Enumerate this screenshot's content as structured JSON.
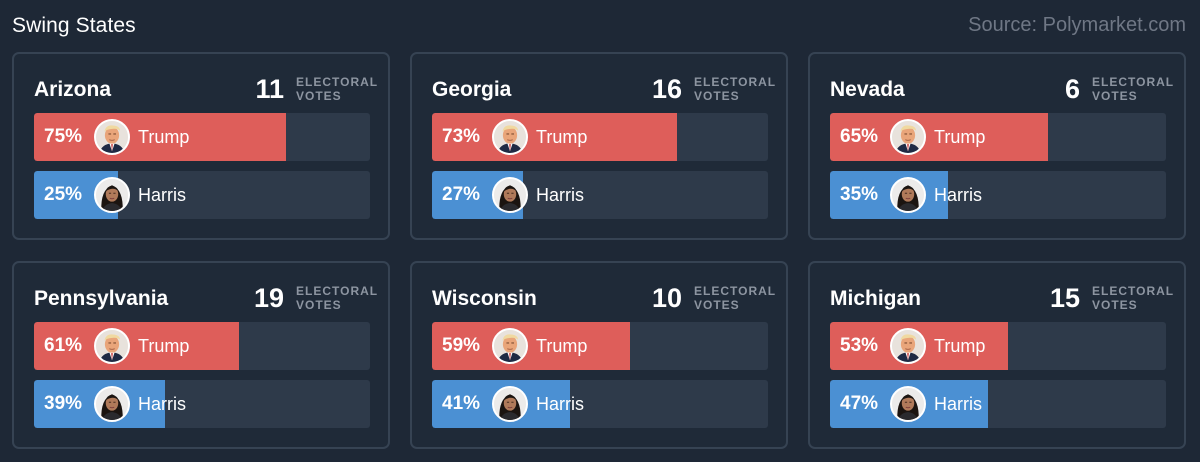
{
  "header": {
    "title": "Swing States",
    "source": "Source: Polymarket.com"
  },
  "electoral_label_line1": "ELECTORAL",
  "electoral_label_line2": "VOTES",
  "colors": {
    "trump": "#de5e5a",
    "harris": "#4b90d3",
    "track": "#2e3a4a",
    "background": "#1e2836"
  },
  "chart_data": {
    "type": "bar",
    "title": "Swing States",
    "unit": "%",
    "states": [
      {
        "name": "Arizona",
        "electoral_votes": "11",
        "trump": 75,
        "harris": 25,
        "trump_label": "75%",
        "harris_label": "25%"
      },
      {
        "name": "Georgia",
        "electoral_votes": "16",
        "trump": 73,
        "harris": 27,
        "trump_label": "73%",
        "harris_label": "27%"
      },
      {
        "name": "Nevada",
        "electoral_votes": "6",
        "trump": 65,
        "harris": 35,
        "trump_label": "65%",
        "harris_label": "35%"
      },
      {
        "name": "Pennsylvania",
        "electoral_votes": "19",
        "trump": 61,
        "harris": 39,
        "trump_label": "61%",
        "harris_label": "39%"
      },
      {
        "name": "Wisconsin",
        "electoral_votes": "10",
        "trump": 59,
        "harris": 41,
        "trump_label": "59%",
        "harris_label": "41%"
      },
      {
        "name": "Michigan",
        "electoral_votes": "15",
        "trump": 53,
        "harris": 47,
        "trump_label": "53%",
        "harris_label": "47%"
      }
    ],
    "series": [
      {
        "name": "Trump",
        "key": "trump",
        "avatar": "trump-portrait-icon"
      },
      {
        "name": "Harris",
        "key": "harris",
        "avatar": "harris-portrait-icon"
      }
    ]
  }
}
